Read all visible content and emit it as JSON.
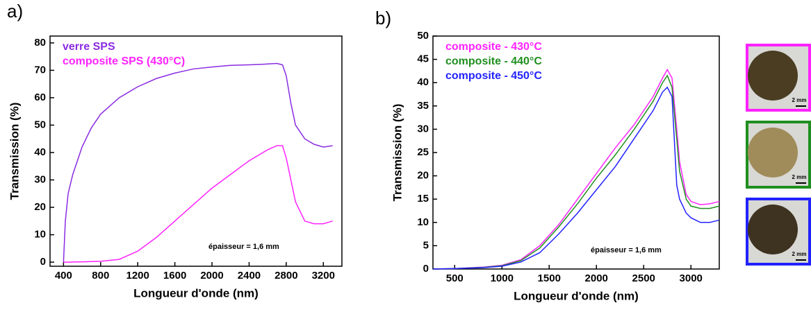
{
  "chart_data": [
    {
      "type": "line",
      "panel_label": "a)",
      "x_label": "Longueur d'onde (nm)",
      "y_label": "Transmission (%)",
      "annotation": "épaisseur = 1,6 mm",
      "legend": "top-left",
      "xlim": [
        255,
        3400
      ],
      "xticks": [
        400,
        800,
        1200,
        1600,
        2000,
        2400,
        2800,
        3200
      ],
      "ylim": [
        -1.5,
        82.5
      ],
      "yticks": [
        0,
        10,
        20,
        30,
        40,
        50,
        60,
        70,
        80
      ],
      "x": [
        400,
        420,
        450,
        500,
        600,
        700,
        800,
        1000,
        1200,
        1400,
        1600,
        1800,
        2000,
        2200,
        2400,
        2600,
        2700,
        2760,
        2800,
        2850,
        2900,
        3000,
        3100,
        3200,
        3300
      ],
      "series": [
        {
          "name": "verre SPS",
          "color": "#8a2be2",
          "values": [
            0,
            15,
            25,
            32,
            42,
            49,
            54,
            60,
            64,
            67,
            69,
            70.5,
            71.2,
            71.8,
            72,
            72.3,
            72.5,
            72,
            68,
            58,
            50,
            45,
            43,
            42,
            42.5
          ]
        },
        {
          "name": "composite SPS (430°C)",
          "color": "#ff22ff",
          "values": [
            0,
            0,
            0,
            0.05,
            0.1,
            0.2,
            0.3,
            1,
            4,
            9,
            15,
            21,
            27,
            32,
            37,
            41,
            42.5,
            42.5,
            38,
            30,
            22,
            15,
            14,
            14,
            15
          ]
        }
      ]
    },
    {
      "type": "line",
      "panel_label": "b)",
      "x_label": "Longueur d'onde (nm)",
      "y_label": "Transmission (%)",
      "annotation": "épaisseur = 1,6 mm",
      "legend": "top-left",
      "xlim": [
        270,
        3300
      ],
      "xticks": [
        500,
        1000,
        1500,
        2000,
        2500,
        3000
      ],
      "ylim": [
        0,
        50
      ],
      "yticks": [
        0,
        5,
        10,
        15,
        20,
        25,
        30,
        35,
        40,
        45,
        50
      ],
      "x": [
        270,
        500,
        800,
        1000,
        1200,
        1400,
        1600,
        1800,
        2000,
        2200,
        2400,
        2600,
        2700,
        2750,
        2800,
        2850,
        2880,
        2950,
        3000,
        3100,
        3200,
        3300
      ],
      "series": [
        {
          "name": "composite - 430°C",
          "color": "#ff22ff",
          "values": [
            0,
            0.1,
            0.4,
            0.8,
            2,
            5,
            9.5,
            15,
            20.5,
            26,
            31,
            37,
            41,
            42.8,
            41,
            30,
            23,
            16,
            14.5,
            13.8,
            14,
            14.5
          ]
        },
        {
          "name": "composite - 440°C",
          "color": "#1f8f1f",
          "values": [
            0,
            0.1,
            0.35,
            0.7,
            1.8,
            4.5,
            9,
            14,
            19.5,
            24.5,
            30,
            36,
            40,
            41.5,
            39,
            28,
            21,
            15,
            13.5,
            13,
            13,
            13.5
          ]
        },
        {
          "name": "composite - 450°C",
          "color": "#2222ff",
          "values": [
            0,
            0.1,
            0.3,
            0.6,
            1.5,
            3.5,
            7.5,
            12,
            17,
            22,
            28,
            34,
            38,
            39,
            37,
            18,
            15,
            12,
            11,
            10,
            10,
            10.5
          ]
        }
      ]
    }
  ],
  "photos": [
    {
      "border_color": "#ff22ff",
      "scale_label": "2 mm"
    },
    {
      "border_color": "#1f8f1f",
      "scale_label": "2 mm"
    },
    {
      "border_color": "#2222ff",
      "scale_label": "2 mm"
    }
  ]
}
